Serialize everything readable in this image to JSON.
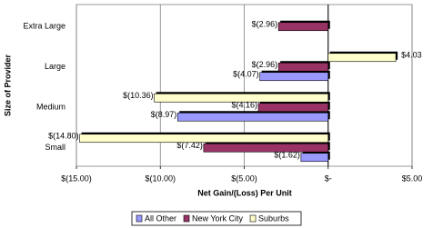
{
  "chart_data": {
    "type": "hbar",
    "xlabel": "Net Gain/(Loss) Per Unit",
    "ylabel": "Size of Provider",
    "categories": [
      "Small",
      "Medium",
      "Large",
      "Extra Large"
    ],
    "series": [
      {
        "name": "All Other",
        "color": "#9999ff",
        "values": [
          -1.62,
          -8.97,
          -4.07,
          null
        ],
        "value_labels": [
          "$(1.62)",
          "$(8.97)",
          "$(4.07)",
          null
        ]
      },
      {
        "name": "New York City",
        "color": "#993366",
        "values": [
          -7.42,
          -4.16,
          -2.96,
          -2.96
        ],
        "value_labels": [
          "$(7.42)",
          "$(4.16)",
          "$(2.96)",
          "$(2.96)"
        ]
      },
      {
        "name": "Suburbs",
        "color": "#ffffcc",
        "values": [
          -14.8,
          -10.36,
          4.03,
          null
        ],
        "value_labels": [
          "$(14.80)",
          "$(10.36)",
          "$4.03",
          null
        ]
      }
    ],
    "xlim": [
      -15,
      5
    ],
    "xticks": [
      {
        "value": -15,
        "label": "$(15.00)"
      },
      {
        "value": -10,
        "label": "$(10.00)"
      },
      {
        "value": -5,
        "label": "$(5.00)"
      },
      {
        "value": 0,
        "label": "$-"
      },
      {
        "value": 5,
        "label": "$5.00"
      }
    ],
    "grid": true,
    "legend": "bottom"
  }
}
